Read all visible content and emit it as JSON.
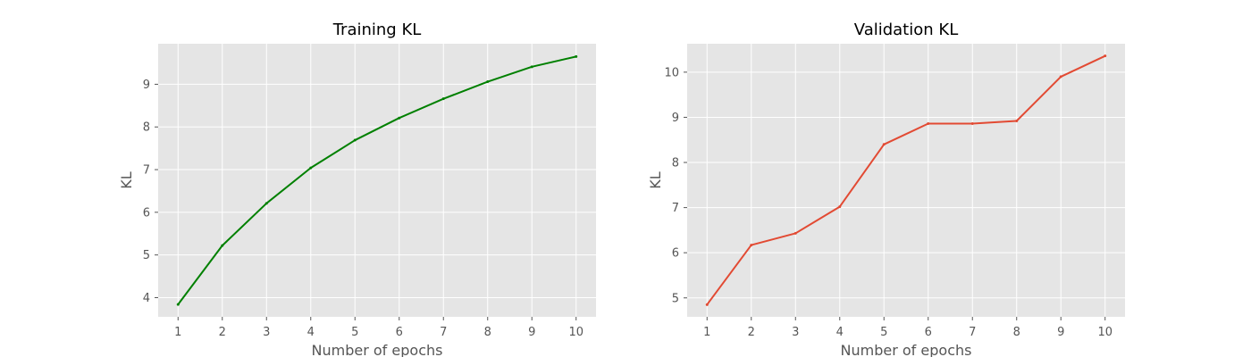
{
  "chart_data": [
    {
      "type": "line",
      "title": "Training KL",
      "xlabel": "Number of epochs",
      "ylabel": "KL",
      "x": [
        1,
        2,
        3,
        4,
        5,
        6,
        7,
        8,
        9,
        10
      ],
      "xticks": [
        1,
        2,
        3,
        4,
        5,
        6,
        7,
        8,
        9,
        10
      ],
      "xlim": [
        0.55,
        10.45
      ],
      "yticks": [
        4,
        5,
        6,
        7,
        8,
        9
      ],
      "ylim": [
        3.55,
        9.95
      ],
      "grid": true,
      "series": [
        {
          "values": [
            3.84,
            5.22,
            6.21,
            7.04,
            7.69,
            8.21,
            8.66,
            9.06,
            9.41,
            9.65
          ],
          "color": "#008000"
        }
      ]
    },
    {
      "type": "line",
      "title": "Validation KL",
      "xlabel": "Number of epochs",
      "ylabel": "KL",
      "x": [
        1,
        2,
        3,
        4,
        5,
        6,
        7,
        8,
        9,
        10
      ],
      "xticks": [
        1,
        2,
        3,
        4,
        5,
        6,
        7,
        8,
        9,
        10
      ],
      "xlim": [
        0.55,
        10.45
      ],
      "yticks": [
        5,
        6,
        7,
        8,
        9,
        10
      ],
      "ylim": [
        4.58,
        10.63
      ],
      "grid": true,
      "series": [
        {
          "values": [
            4.85,
            6.17,
            6.43,
            7.02,
            8.4,
            8.86,
            8.86,
            8.92,
            9.9,
            10.36
          ],
          "color": "#e24a33"
        }
      ]
    }
  ]
}
